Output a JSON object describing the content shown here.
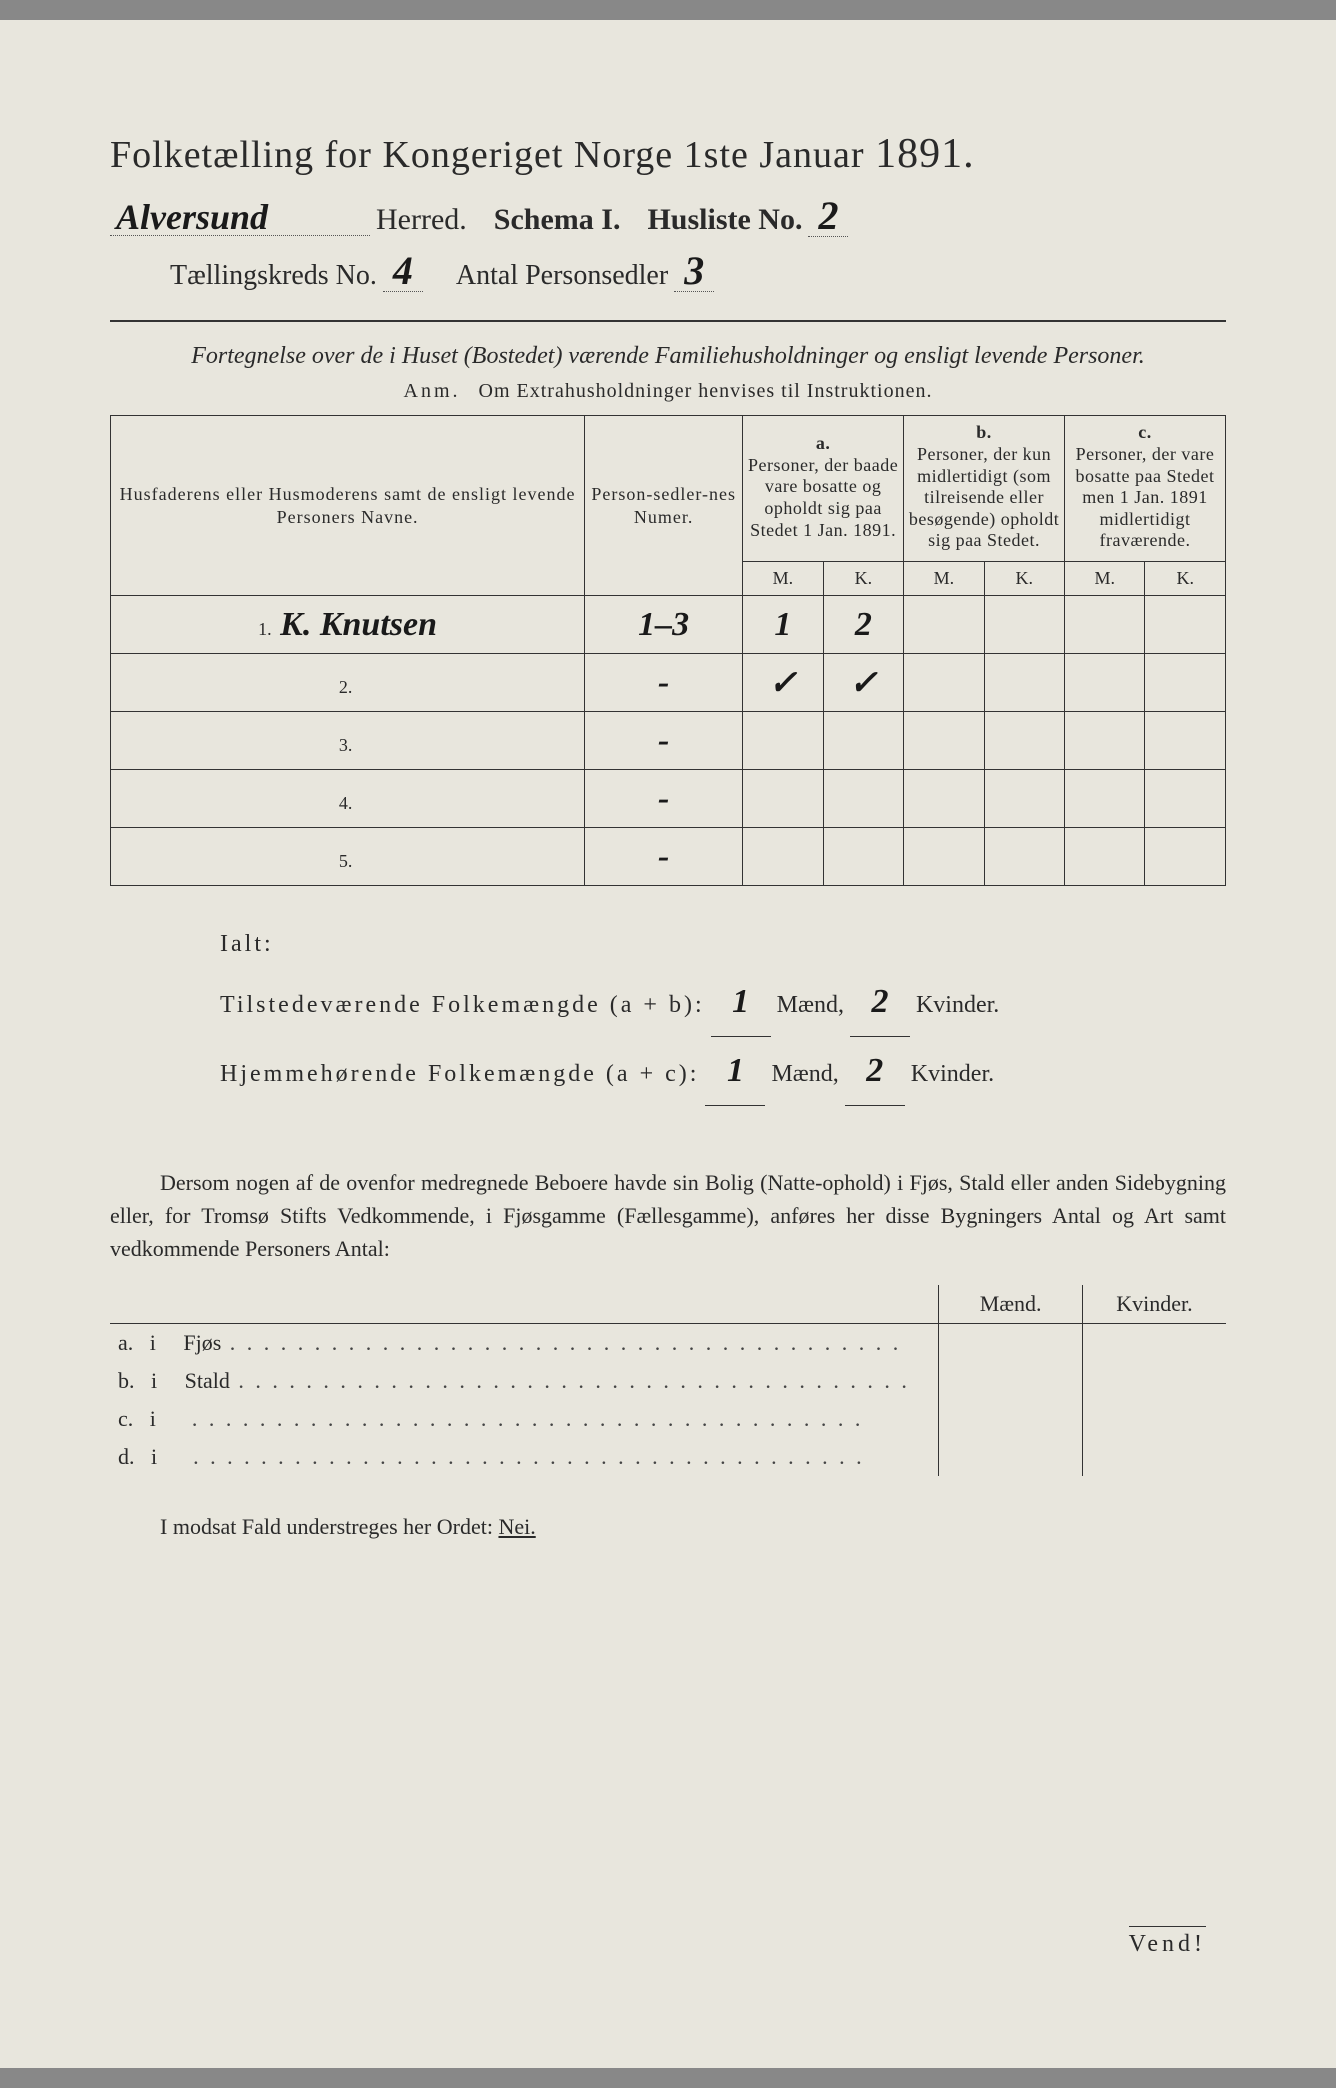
{
  "colors": {
    "paper": "#e8e6dd",
    "ink": "#2a2a2a",
    "border": "#333333",
    "handwriting": "#1a1a1a"
  },
  "header": {
    "title_prefix": "Folketælling for Kongeriget Norge 1ste Januar",
    "year": "1891.",
    "herred_hw": "Alversund",
    "herred_label": "Herred.",
    "schema_label": "Schema I.",
    "husliste_label": "Husliste No.",
    "husliste_no_hw": "2",
    "kreds_label": "Tællingskreds No.",
    "kreds_no_hw": "4",
    "antal_label": "Antal Personsedler",
    "antal_hw": "3"
  },
  "subtitle": "Fortegnelse over de i Huset (Bostedet) værende Familiehusholdninger og ensligt levende Personer.",
  "anm": {
    "prefix": "Anm.",
    "text": "Om Extrahusholdninger henvises til Instruktionen."
  },
  "table": {
    "col_name": "Husfaderens eller Husmoderens samt de ensligt levende Personers Navne.",
    "col_num": "Person-sedler-nes Numer.",
    "col_a_top": "a.",
    "col_a": "Personer, der baade vare bosatte og opholdt sig paa Stedet 1 Jan. 1891.",
    "col_b_top": "b.",
    "col_b": "Personer, der kun midlertidigt (som tilreisende eller besøgende) opholdt sig paa Stedet.",
    "col_c_top": "c.",
    "col_c": "Personer, der vare bosatte paa Stedet men 1 Jan. 1891 midlertidigt fraværende.",
    "M": "M.",
    "K": "K.",
    "rows": [
      {
        "n": "1.",
        "name_hw": "K. Knutsen",
        "num_hw": "1–3",
        "aM": "1",
        "aK": "2",
        "bM": "",
        "bK": "",
        "cM": "",
        "cK": ""
      },
      {
        "n": "2.",
        "name_hw": "",
        "num_hw": "-",
        "aM": "✓",
        "aK": "✓",
        "bM": "",
        "bK": "",
        "cM": "",
        "cK": ""
      },
      {
        "n": "3.",
        "name_hw": "",
        "num_hw": "-",
        "aM": "",
        "aK": "",
        "bM": "",
        "bK": "",
        "cM": "",
        "cK": ""
      },
      {
        "n": "4.",
        "name_hw": "",
        "num_hw": "-",
        "aM": "",
        "aK": "",
        "bM": "",
        "bK": "",
        "cM": "",
        "cK": ""
      },
      {
        "n": "5.",
        "name_hw": "",
        "num_hw": "-",
        "aM": "",
        "aK": "",
        "bM": "",
        "bK": "",
        "cM": "",
        "cK": ""
      }
    ]
  },
  "totals": {
    "ialt": "Ialt:",
    "line1_label": "Tilstedeværende Folkemængde (a + b):",
    "line2_label": "Hjemmehørende Folkemængde (a + c):",
    "maend": "Mænd,",
    "kvinder": "Kvinder.",
    "l1_m_hw": "1",
    "l1_k_hw": "2",
    "l2_m_hw": "1",
    "l2_k_hw": "2"
  },
  "para": "Dersom nogen af de ovenfor medregnede Beboere havde sin Bolig (Natte-ophold) i Fjøs, Stald eller anden Sidebygning eller, for Tromsø Stifts Vedkommende, i Fjøsgamme (Fællesgamme), anføres her disse Bygningers Antal og Art samt vedkommende Personers Antal:",
  "subtable": {
    "maend": "Mænd.",
    "kvinder": "Kvinder.",
    "rows": [
      {
        "k": "a.",
        "i": "i",
        "t": "Fjøs"
      },
      {
        "k": "b.",
        "i": "i",
        "t": "Stald"
      },
      {
        "k": "c.",
        "i": "i",
        "t": ""
      },
      {
        "k": "d.",
        "i": "i",
        "t": ""
      }
    ]
  },
  "nei": {
    "text": "I modsat Fald understreges her Ordet:",
    "word": "Nei."
  },
  "vend": "Vend!"
}
